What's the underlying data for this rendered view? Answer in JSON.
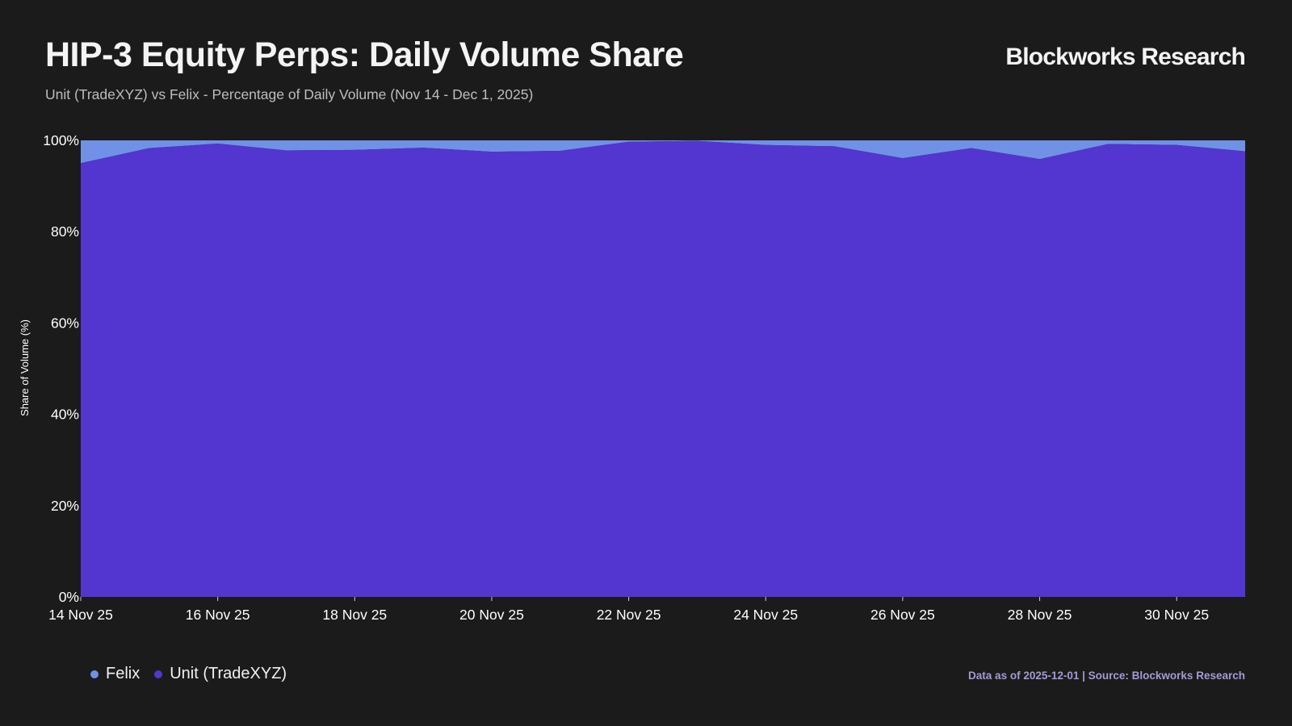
{
  "header": {
    "title": "HIP-3 Equity Perps: Daily Volume Share",
    "subtitle": "Unit (TradeXYZ) vs Felix - Percentage of Daily Volume (Nov 14 - Dec 1, 2025)",
    "brand": "Blockworks Research"
  },
  "footer": {
    "source": "Data as of 2025-12-01 | Source: Blockworks Research"
  },
  "colors": {
    "felix": "#7191e6",
    "unit": "#5236cf",
    "background": "#1b1b1b"
  },
  "chart_data": {
    "type": "area",
    "stacked": true,
    "title": "HIP-3 Equity Perps: Daily Volume Share",
    "xlabel": "",
    "ylabel": "Share of Volume (%)",
    "ylim": [
      0,
      100
    ],
    "yticks": [
      "0%",
      "20%",
      "40%",
      "60%",
      "80%",
      "100%"
    ],
    "yticks_values": [
      0,
      20,
      40,
      60,
      80,
      100
    ],
    "x": [
      "14 Nov 25",
      "15 Nov 25",
      "16 Nov 25",
      "17 Nov 25",
      "18 Nov 25",
      "19 Nov 25",
      "20 Nov 25",
      "21 Nov 25",
      "22 Nov 25",
      "23 Nov 25",
      "24 Nov 25",
      "25 Nov 25",
      "26 Nov 25",
      "27 Nov 25",
      "28 Nov 25",
      "29 Nov 25",
      "30 Nov 25",
      "1 Dec 25"
    ],
    "xticks": [
      "14 Nov 25",
      "16 Nov 25",
      "18 Nov 25",
      "20 Nov 25",
      "22 Nov 25",
      "24 Nov 25",
      "26 Nov 25",
      "28 Nov 25",
      "30 Nov 25"
    ],
    "xticks_index": [
      0,
      2,
      4,
      6,
      8,
      10,
      12,
      14,
      16
    ],
    "legend_position": "bottom-left",
    "series": [
      {
        "name": "Unit (TradeXYZ)",
        "color": "#5236cf",
        "values": [
          95.0,
          98.3,
          99.3,
          97.8,
          97.9,
          98.4,
          97.5,
          97.7,
          99.7,
          99.9,
          99.0,
          98.7,
          96.1,
          98.3,
          95.9,
          99.2,
          99.0,
          97.6
        ]
      },
      {
        "name": "Felix",
        "color": "#7191e6",
        "values": [
          5.0,
          1.7,
          0.7,
          2.2,
          2.1,
          1.6,
          2.5,
          2.3,
          0.3,
          0.1,
          1.0,
          1.3,
          3.9,
          1.7,
          4.1,
          0.8,
          1.0,
          2.4
        ]
      }
    ],
    "legend": [
      "Felix",
      "Unit (TradeXYZ)"
    ]
  }
}
